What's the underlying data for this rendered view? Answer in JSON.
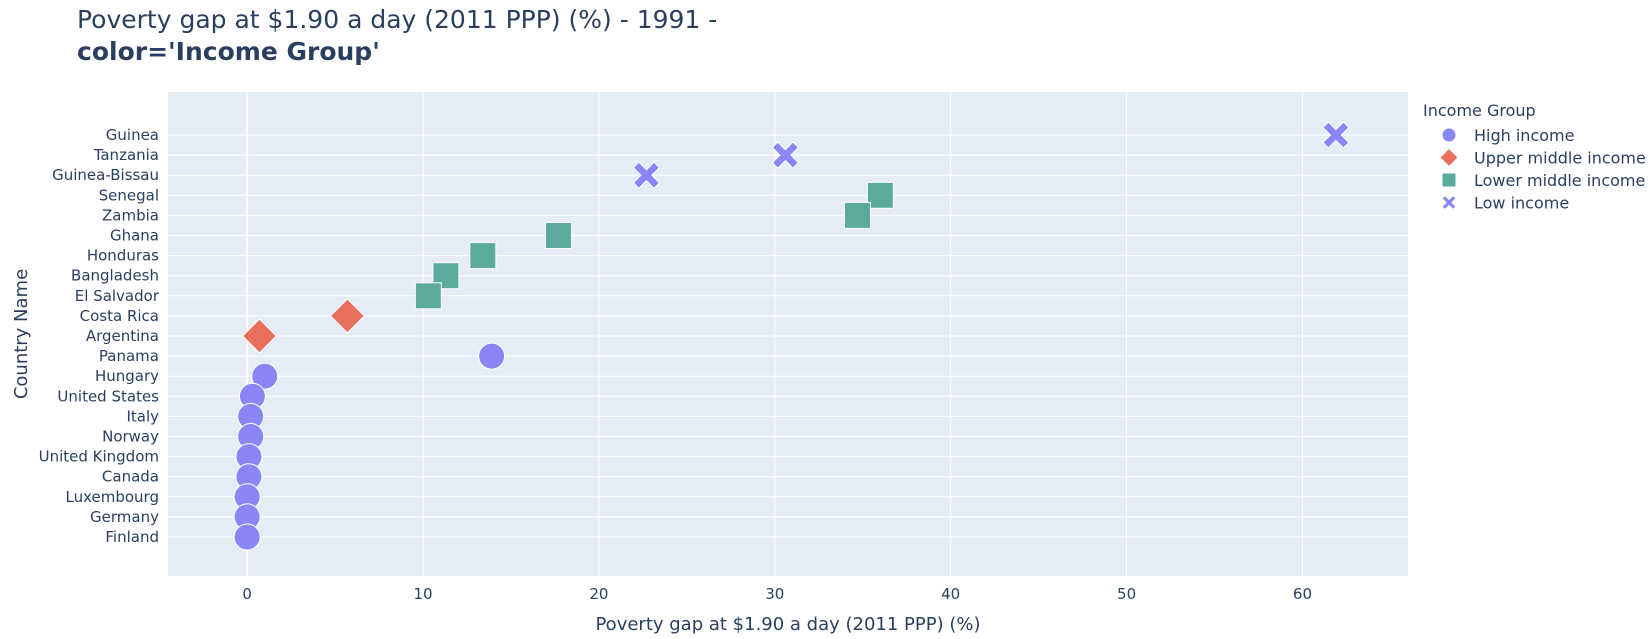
{
  "title": {
    "line1": "Poverty gap at $1.90 a day (2011 PPP) (%) - 1991 -",
    "line2": "color='Income Group'"
  },
  "chart_data": {
    "type": "scatter",
    "xlabel": "Poverty gap at $1.90 a day (2011 PPP) (%)",
    "ylabel": "Country Name",
    "xlim": [
      -4.5,
      66
    ],
    "x_ticks": [
      0,
      10,
      20,
      30,
      40,
      50,
      60
    ],
    "grid": true,
    "legend_title": "Income Group",
    "legend_position": "right",
    "categories": [
      "Guinea",
      "Tanzania",
      "Guinea-Bissau",
      "Senegal",
      "Zambia",
      "Ghana",
      "Honduras",
      "Bangladesh",
      "El Salvador",
      "Costa Rica",
      "Argentina",
      "Panama",
      "Hungary",
      "United States",
      "Italy",
      "Norway",
      "United Kingdom",
      "Canada",
      "Luxembourg",
      "Germany",
      "Finland"
    ],
    "series": [
      {
        "name": "High income",
        "symbol": "circle",
        "color": "#8a86f6",
        "points": [
          {
            "country": "Panama",
            "x": 13.9
          },
          {
            "country": "Hungary",
            "x": 1.0
          },
          {
            "country": "United States",
            "x": 0.3
          },
          {
            "country": "Italy",
            "x": 0.2
          },
          {
            "country": "Norway",
            "x": 0.2
          },
          {
            "country": "United Kingdom",
            "x": 0.1
          },
          {
            "country": "Canada",
            "x": 0.1
          },
          {
            "country": "Luxembourg",
            "x": 0.0
          },
          {
            "country": "Germany",
            "x": 0.0
          },
          {
            "country": "Finland",
            "x": 0.0
          }
        ]
      },
      {
        "name": "Upper middle income",
        "symbol": "diamond",
        "color": "#e8705c",
        "points": [
          {
            "country": "Costa Rica",
            "x": 5.7
          },
          {
            "country": "Argentina",
            "x": 0.7
          }
        ]
      },
      {
        "name": "Lower middle income",
        "symbol": "square",
        "color": "#5aaa9d",
        "points": [
          {
            "country": "Senegal",
            "x": 36.0
          },
          {
            "country": "Zambia",
            "x": 34.7
          },
          {
            "country": "Ghana",
            "x": 17.7
          },
          {
            "country": "Honduras",
            "x": 13.4
          },
          {
            "country": "Bangladesh",
            "x": 11.3
          },
          {
            "country": "El Salvador",
            "x": 10.3
          }
        ]
      },
      {
        "name": "Low income",
        "symbol": "x",
        "color": "#8a86f6",
        "points": [
          {
            "country": "Guinea",
            "x": 61.9
          },
          {
            "country": "Tanzania",
            "x": 30.6
          },
          {
            "country": "Guinea-Bissau",
            "x": 22.7
          }
        ]
      }
    ]
  }
}
